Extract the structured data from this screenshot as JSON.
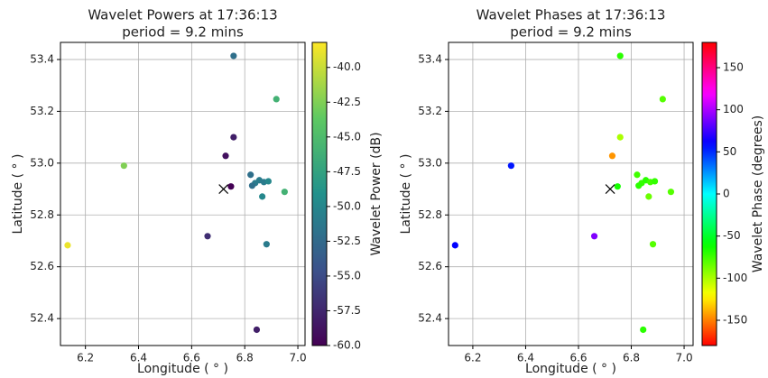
{
  "chart_data": [
    {
      "type": "scatter",
      "title": "Wavelet Powers at 17:36:13",
      "subtitle": "period = 9.2 mins",
      "x_label": "Longitude ( ° )",
      "y_label": "Latitude ( ° )",
      "colorbar_label": "Wavelet Power (dB)",
      "cmap": "viridis",
      "clim": [
        -60,
        -38.2
      ],
      "grid": true,
      "x": [
        6.133,
        6.345,
        6.66,
        6.728,
        6.748,
        6.758,
        6.758,
        6.822,
        6.839,
        6.855,
        6.872,
        6.889,
        6.828,
        6.866,
        6.919,
        6.95,
        6.882,
        6.845
      ],
      "y": [
        52.683,
        52.99,
        52.718,
        53.028,
        52.91,
        53.414,
        53.1,
        52.955,
        52.923,
        52.934,
        52.927,
        52.93,
        52.913,
        52.871,
        53.247,
        52.889,
        52.687,
        52.357
      ],
      "values": [
        -38.8,
        -42.5,
        -57,
        -59,
        -60,
        -52,
        -58,
        -52,
        -51,
        -51,
        -51,
        -50,
        -52,
        -50,
        -46,
        -46,
        -51,
        -58
      ],
      "marker": {
        "x": 6.72,
        "y": 52.9
      },
      "xlim": [
        6.106,
        7.027
      ],
      "xticks": [
        6.2,
        6.4,
        6.6,
        6.8,
        {
          "value": 7,
          "label": "7.0"
        }
      ],
      "ylim": [
        52.296,
        53.466
      ],
      "yticks": [
        52.4,
        52.6,
        52.8,
        {
          "value": 53,
          "label": "53.0"
        },
        53.2,
        53.4
      ],
      "cticks": [
        {
          "value": -60,
          "label": "-60.0"
        },
        -57.5,
        {
          "value": -55,
          "label": "-55.0"
        },
        -52.5,
        {
          "value": -50,
          "label": "-50.0"
        },
        -47.5,
        {
          "value": -45,
          "label": "-45.0"
        },
        -42.5,
        {
          "value": -40,
          "label": "-40.0"
        }
      ]
    },
    {
      "type": "scatter",
      "title": "Wavelet Phases at 17:36:13",
      "subtitle": "period = 9.2 mins",
      "x_label": "Longitude ( ° )",
      "y_label": "Latitude ( ° )",
      "colorbar_label": "Wavelet Phase (degrees)",
      "cmap": "hsv",
      "clim": [
        -180,
        180
      ],
      "grid": true,
      "x": [
        6.133,
        6.345,
        6.66,
        6.728,
        6.748,
        6.758,
        6.758,
        6.822,
        6.839,
        6.855,
        6.872,
        6.889,
        6.828,
        6.866,
        6.919,
        6.95,
        6.882,
        6.845
      ],
      "y": [
        52.683,
        52.99,
        52.718,
        53.028,
        52.91,
        53.414,
        53.1,
        52.955,
        52.923,
        52.934,
        52.927,
        52.93,
        52.913,
        52.871,
        53.247,
        52.889,
        52.687,
        52.357
      ],
      "values": [
        60,
        55,
        90,
        -145,
        -65,
        -70,
        -100,
        -75,
        -72,
        -70,
        -75,
        -72,
        -70,
        -85,
        -80,
        -80,
        -80,
        -70
      ],
      "marker": {
        "x": 6.72,
        "y": 52.9
      },
      "xlim": [
        6.108,
        7.034
      ],
      "xticks": [
        6.2,
        6.4,
        6.6,
        6.8,
        {
          "value": 7,
          "label": "7.0"
        }
      ],
      "ylim": [
        52.296,
        53.466
      ],
      "yticks": [
        52.4,
        52.6,
        52.8,
        {
          "value": 53,
          "label": "53.0"
        },
        53.2,
        53.4
      ],
      "cticks": [
        -150,
        -100,
        -50,
        0,
        50,
        100,
        150
      ]
    }
  ]
}
